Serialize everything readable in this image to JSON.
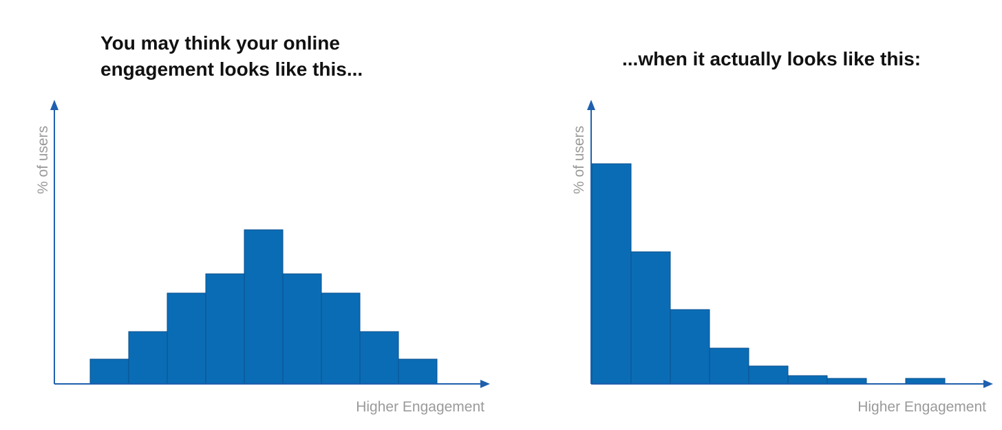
{
  "titles": {
    "left": "You may think your online engagement looks like this...",
    "right": "...when it actually looks like this:"
  },
  "colors": {
    "bar": "#0a6cb5",
    "bar_edge": "#0a4f8c",
    "axis": "#1f5fae",
    "label": "#9a9a9a"
  },
  "chart_data": [
    {
      "type": "bar",
      "title": "You may think your online engagement looks like this...",
      "xlabel": "Higher Engagement",
      "ylabel": "% of users",
      "values": [
        9,
        19,
        33,
        40,
        56,
        40,
        33,
        19,
        9
      ],
      "ylim": [
        0,
        100
      ],
      "grid": false,
      "legend": "none"
    },
    {
      "type": "bar",
      "title": "...when it actually looks like this:",
      "xlabel": "Higher Engagement",
      "ylabel": "% of users",
      "values": [
        80,
        48,
        27,
        13,
        6.5,
        3,
        2,
        0,
        2
      ],
      "ylim": [
        0,
        100
      ],
      "grid": false,
      "legend": "none"
    }
  ]
}
